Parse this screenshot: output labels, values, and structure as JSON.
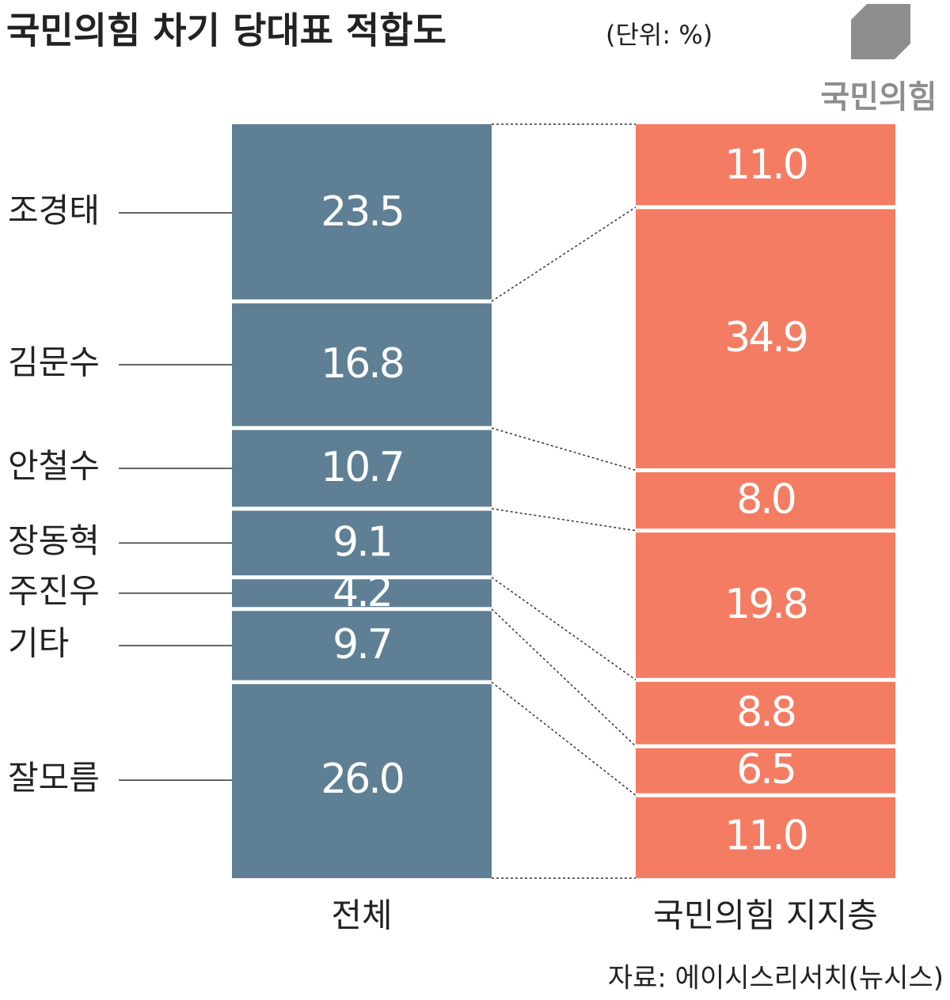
{
  "chart_data": {
    "type": "stacked_bar_100",
    "title": "국민의힘 차기 당대표 적합도",
    "subtitle": "(단위: %)",
    "logo": "국민의힘",
    "source": "자료: 에이시스리서치(뉴시스)",
    "categories": [
      "전체",
      "국민의힘 지지층"
    ],
    "colors": [
      "#5e7f94",
      "#f47c62"
    ],
    "ylim": [
      0,
      100
    ],
    "series": [
      {
        "name": "조경태",
        "values": [
          23.5,
          11.0
        ],
        "value_labels": [
          "23.5",
          "11.0"
        ]
      },
      {
        "name": "김문수",
        "values": [
          16.8,
          34.9
        ],
        "value_labels": [
          "16.8",
          "34.9"
        ]
      },
      {
        "name": "안철수",
        "values": [
          10.7,
          8.0
        ],
        "value_labels": [
          "10.7",
          "8.0"
        ]
      },
      {
        "name": "장동혁",
        "values": [
          9.1,
          19.8
        ],
        "value_labels": [
          "9.1",
          "19.8"
        ]
      },
      {
        "name": "주진우",
        "values": [
          4.2,
          8.8
        ],
        "value_labels": [
          "4.2",
          "8.8"
        ]
      },
      {
        "name": "기타",
        "values": [
          9.7,
          6.5
        ],
        "value_labels": [
          "9.7",
          "6.5"
        ]
      },
      {
        "name": "잘모름",
        "values": [
          26.0,
          11.0
        ],
        "value_labels": [
          "26.0",
          "11.0"
        ]
      }
    ]
  }
}
